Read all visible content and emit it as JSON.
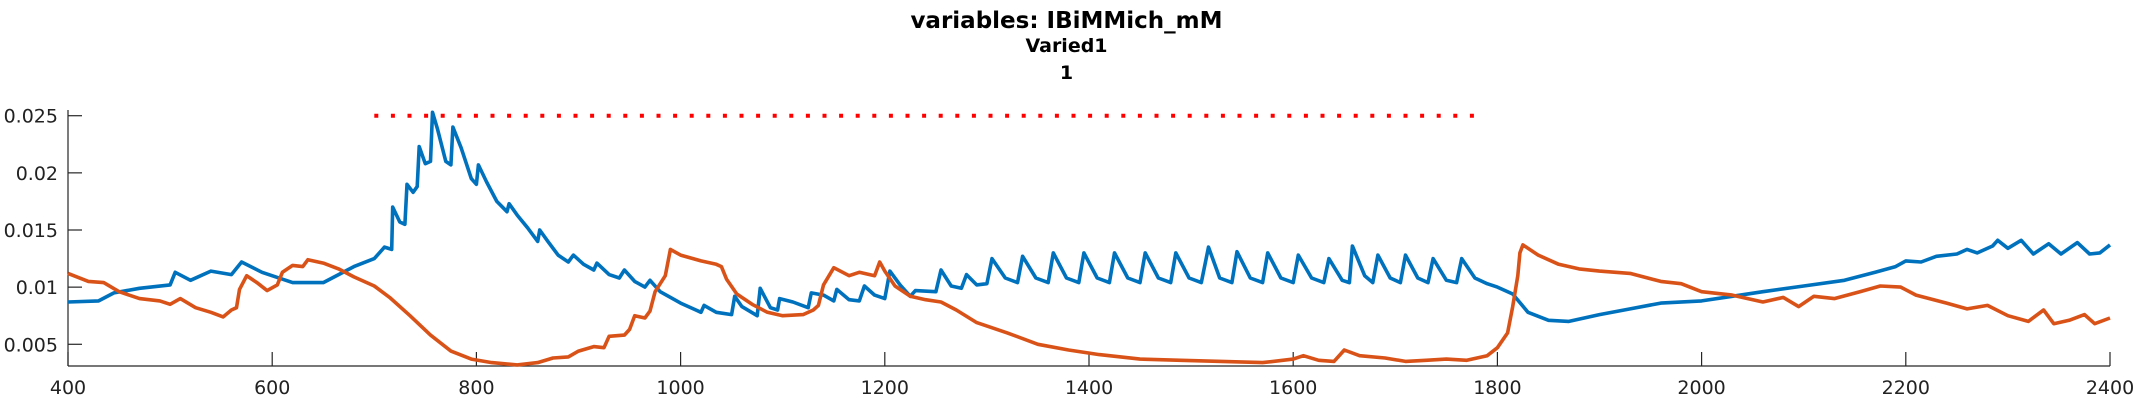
{
  "chart_data": {
    "type": "line",
    "title": "variables: IBiMMich_mM",
    "subtitle_lines": [
      "Varied1",
      "1"
    ],
    "xlabel": "",
    "ylabel": "",
    "xlim": [
      400,
      2400
    ],
    "ylim": [
      0.0031,
      0.0255
    ],
    "x_ticks": [
      400,
      600,
      800,
      1000,
      1200,
      1400,
      1600,
      1800,
      2000,
      2200,
      2400
    ],
    "y_ticks": [
      0.005,
      0.01,
      0.015,
      0.02,
      0.025
    ],
    "y_tick_labels": [
      "0.005",
      "0.01",
      "0.015",
      "0.02",
      "0.025"
    ],
    "grid": false,
    "series": [
      {
        "color": "#0072BD",
        "style": "solid",
        "points": [
          [
            400,
            0.0087
          ],
          [
            430,
            0.0088
          ],
          [
            445,
            0.0095
          ],
          [
            470,
            0.0099
          ],
          [
            500,
            0.0102
          ],
          [
            505,
            0.0113
          ],
          [
            520,
            0.0106
          ],
          [
            540,
            0.0114
          ],
          [
            560,
            0.0111
          ],
          [
            570,
            0.0122
          ],
          [
            590,
            0.0113
          ],
          [
            620,
            0.0104
          ],
          [
            650,
            0.0104
          ],
          [
            680,
            0.0118
          ],
          [
            700,
            0.0125
          ],
          [
            710,
            0.0135
          ],
          [
            717,
            0.0133
          ],
          [
            718,
            0.017
          ],
          [
            725,
            0.0157
          ],
          [
            730,
            0.0155
          ],
          [
            732,
            0.019
          ],
          [
            738,
            0.0183
          ],
          [
            742,
            0.0188
          ],
          [
            744,
            0.0223
          ],
          [
            750,
            0.0208
          ],
          [
            755,
            0.021
          ],
          [
            757,
            0.0253
          ],
          [
            762,
            0.0238
          ],
          [
            770,
            0.021
          ],
          [
            775,
            0.0207
          ],
          [
            777,
            0.024
          ],
          [
            785,
            0.0222
          ],
          [
            795,
            0.0195
          ],
          [
            800,
            0.019
          ],
          [
            802,
            0.0207
          ],
          [
            810,
            0.0192
          ],
          [
            820,
            0.0175
          ],
          [
            830,
            0.0166
          ],
          [
            832,
            0.0173
          ],
          [
            840,
            0.0163
          ],
          [
            850,
            0.0152
          ],
          [
            860,
            0.014
          ],
          [
            862,
            0.015
          ],
          [
            870,
            0.014
          ],
          [
            880,
            0.0128
          ],
          [
            890,
            0.0122
          ],
          [
            895,
            0.0128
          ],
          [
            905,
            0.012
          ],
          [
            915,
            0.0115
          ],
          [
            918,
            0.0121
          ],
          [
            930,
            0.0111
          ],
          [
            940,
            0.0108
          ],
          [
            945,
            0.0115
          ],
          [
            955,
            0.0105
          ],
          [
            965,
            0.01
          ],
          [
            970,
            0.0106
          ],
          [
            980,
            0.0096
          ],
          [
            1000,
            0.0086
          ],
          [
            1015,
            0.008
          ],
          [
            1020,
            0.0078
          ],
          [
            1023,
            0.0084
          ],
          [
            1035,
            0.0078
          ],
          [
            1050,
            0.0076
          ],
          [
            1053,
            0.0092
          ],
          [
            1060,
            0.0083
          ],
          [
            1075,
            0.0075
          ],
          [
            1078,
            0.0099
          ],
          [
            1088,
            0.0082
          ],
          [
            1095,
            0.008
          ],
          [
            1097,
            0.009
          ],
          [
            1110,
            0.0087
          ],
          [
            1125,
            0.0082
          ],
          [
            1128,
            0.0095
          ],
          [
            1140,
            0.0093
          ],
          [
            1150,
            0.0088
          ],
          [
            1153,
            0.0098
          ],
          [
            1165,
            0.0089
          ],
          [
            1175,
            0.0088
          ],
          [
            1180,
            0.0101
          ],
          [
            1190,
            0.0093
          ],
          [
            1200,
            0.009
          ],
          [
            1205,
            0.0114
          ],
          [
            1215,
            0.0102
          ],
          [
            1225,
            0.0092
          ],
          [
            1230,
            0.0097
          ],
          [
            1250,
            0.0096
          ],
          [
            1255,
            0.0115
          ],
          [
            1265,
            0.0101
          ],
          [
            1275,
            0.0099
          ],
          [
            1280,
            0.0111
          ],
          [
            1290,
            0.0102
          ],
          [
            1300,
            0.0103
          ],
          [
            1305,
            0.0125
          ],
          [
            1318,
            0.0108
          ],
          [
            1330,
            0.0104
          ],
          [
            1335,
            0.0127
          ],
          [
            1348,
            0.0108
          ],
          [
            1360,
            0.0104
          ],
          [
            1365,
            0.013
          ],
          [
            1378,
            0.0108
          ],
          [
            1390,
            0.0104
          ],
          [
            1395,
            0.013
          ],
          [
            1408,
            0.0108
          ],
          [
            1420,
            0.0104
          ],
          [
            1425,
            0.013
          ],
          [
            1438,
            0.0108
          ],
          [
            1450,
            0.0104
          ],
          [
            1455,
            0.013
          ],
          [
            1468,
            0.0108
          ],
          [
            1480,
            0.0104
          ],
          [
            1485,
            0.013
          ],
          [
            1498,
            0.0108
          ],
          [
            1510,
            0.0104
          ],
          [
            1517,
            0.0135
          ],
          [
            1528,
            0.0108
          ],
          [
            1540,
            0.0104
          ],
          [
            1545,
            0.0131
          ],
          [
            1558,
            0.0108
          ],
          [
            1570,
            0.0104
          ],
          [
            1575,
            0.013
          ],
          [
            1588,
            0.0108
          ],
          [
            1600,
            0.0104
          ],
          [
            1605,
            0.0128
          ],
          [
            1618,
            0.0108
          ],
          [
            1630,
            0.0104
          ],
          [
            1635,
            0.0125
          ],
          [
            1648,
            0.0106
          ],
          [
            1655,
            0.0104
          ],
          [
            1658,
            0.0136
          ],
          [
            1670,
            0.011
          ],
          [
            1678,
            0.0104
          ],
          [
            1683,
            0.0128
          ],
          [
            1695,
            0.0108
          ],
          [
            1705,
            0.0104
          ],
          [
            1710,
            0.0128
          ],
          [
            1722,
            0.0108
          ],
          [
            1732,
            0.0104
          ],
          [
            1737,
            0.0125
          ],
          [
            1750,
            0.0106
          ],
          [
            1760,
            0.0104
          ],
          [
            1765,
            0.0125
          ],
          [
            1778,
            0.0108
          ],
          [
            1790,
            0.0103
          ],
          [
            1800,
            0.01
          ],
          [
            1815,
            0.0094
          ],
          [
            1830,
            0.0078
          ],
          [
            1850,
            0.0071
          ],
          [
            1870,
            0.007
          ],
          [
            1900,
            0.0076
          ],
          [
            1930,
            0.0081
          ],
          [
            1960,
            0.0086
          ],
          [
            2000,
            0.0088
          ],
          [
            2030,
            0.0092
          ],
          [
            2060,
            0.0096
          ],
          [
            2100,
            0.0101
          ],
          [
            2140,
            0.0106
          ],
          [
            2170,
            0.0113
          ],
          [
            2190,
            0.0118
          ],
          [
            2200,
            0.0123
          ],
          [
            2215,
            0.0122
          ],
          [
            2230,
            0.0127
          ],
          [
            2250,
            0.0129
          ],
          [
            2260,
            0.0133
          ],
          [
            2270,
            0.013
          ],
          [
            2285,
            0.0136
          ],
          [
            2290,
            0.0141
          ],
          [
            2300,
            0.0134
          ],
          [
            2313,
            0.0141
          ],
          [
            2325,
            0.0129
          ],
          [
            2340,
            0.0138
          ],
          [
            2352,
            0.0129
          ],
          [
            2368,
            0.0139
          ],
          [
            2380,
            0.0129
          ],
          [
            2390,
            0.013
          ],
          [
            2400,
            0.0137
          ]
        ]
      },
      {
        "color": "#D95319",
        "style": "solid",
        "points": [
          [
            400,
            0.0112
          ],
          [
            420,
            0.0105
          ],
          [
            435,
            0.0104
          ],
          [
            450,
            0.0096
          ],
          [
            470,
            0.009
          ],
          [
            490,
            0.0088
          ],
          [
            500,
            0.0085
          ],
          [
            510,
            0.009
          ],
          [
            525,
            0.0082
          ],
          [
            540,
            0.0078
          ],
          [
            552,
            0.0074
          ],
          [
            560,
            0.008
          ],
          [
            565,
            0.0082
          ],
          [
            568,
            0.0098
          ],
          [
            575,
            0.011
          ],
          [
            585,
            0.0104
          ],
          [
            595,
            0.0097
          ],
          [
            605,
            0.0102
          ],
          [
            610,
            0.0113
          ],
          [
            620,
            0.0119
          ],
          [
            630,
            0.0118
          ],
          [
            635,
            0.0124
          ],
          [
            650,
            0.0121
          ],
          [
            665,
            0.0116
          ],
          [
            680,
            0.0109
          ],
          [
            700,
            0.0101
          ],
          [
            715,
            0.0091
          ],
          [
            735,
            0.0075
          ],
          [
            755,
            0.0058
          ],
          [
            775,
            0.0044
          ],
          [
            795,
            0.0037
          ],
          [
            815,
            0.0034
          ],
          [
            840,
            0.0032
          ],
          [
            860,
            0.0034
          ],
          [
            875,
            0.0038
          ],
          [
            890,
            0.0039
          ],
          [
            900,
            0.0044
          ],
          [
            915,
            0.0048
          ],
          [
            925,
            0.0047
          ],
          [
            930,
            0.0057
          ],
          [
            945,
            0.0058
          ],
          [
            950,
            0.0063
          ],
          [
            955,
            0.0075
          ],
          [
            965,
            0.0073
          ],
          [
            970,
            0.0079
          ],
          [
            975,
            0.0096
          ],
          [
            985,
            0.011
          ],
          [
            990,
            0.0133
          ],
          [
            1000,
            0.0128
          ],
          [
            1020,
            0.0123
          ],
          [
            1035,
            0.012
          ],
          [
            1040,
            0.0118
          ],
          [
            1045,
            0.0107
          ],
          [
            1055,
            0.0094
          ],
          [
            1070,
            0.0085
          ],
          [
            1085,
            0.0078
          ],
          [
            1100,
            0.0075
          ],
          [
            1120,
            0.0076
          ],
          [
            1130,
            0.008
          ],
          [
            1135,
            0.0084
          ],
          [
            1140,
            0.0102
          ],
          [
            1150,
            0.0117
          ],
          [
            1165,
            0.011
          ],
          [
            1175,
            0.0113
          ],
          [
            1190,
            0.011
          ],
          [
            1195,
            0.0122
          ],
          [
            1200,
            0.0114
          ],
          [
            1210,
            0.0101
          ],
          [
            1225,
            0.0092
          ],
          [
            1240,
            0.0089
          ],
          [
            1255,
            0.0087
          ],
          [
            1270,
            0.008
          ],
          [
            1290,
            0.0069
          ],
          [
            1320,
            0.006
          ],
          [
            1350,
            0.005
          ],
          [
            1380,
            0.0045
          ],
          [
            1410,
            0.0041
          ],
          [
            1450,
            0.0037
          ],
          [
            1490,
            0.0036
          ],
          [
            1530,
            0.0035
          ],
          [
            1570,
            0.0034
          ],
          [
            1600,
            0.0037
          ],
          [
            1610,
            0.004
          ],
          [
            1625,
            0.0036
          ],
          [
            1640,
            0.0035
          ],
          [
            1650,
            0.0045
          ],
          [
            1665,
            0.004
          ],
          [
            1690,
            0.0038
          ],
          [
            1710,
            0.0035
          ],
          [
            1730,
            0.0036
          ],
          [
            1750,
            0.0037
          ],
          [
            1770,
            0.0036
          ],
          [
            1790,
            0.004
          ],
          [
            1800,
            0.0047
          ],
          [
            1810,
            0.006
          ],
          [
            1815,
            0.0083
          ],
          [
            1820,
            0.011
          ],
          [
            1822,
            0.013
          ],
          [
            1825,
            0.0137
          ],
          [
            1840,
            0.0128
          ],
          [
            1860,
            0.012
          ],
          [
            1880,
            0.0116
          ],
          [
            1900,
            0.0114
          ],
          [
            1930,
            0.0112
          ],
          [
            1960,
            0.0105
          ],
          [
            1980,
            0.0103
          ],
          [
            2000,
            0.0096
          ],
          [
            2030,
            0.0093
          ],
          [
            2060,
            0.0087
          ],
          [
            2080,
            0.0091
          ],
          [
            2095,
            0.0083
          ],
          [
            2110,
            0.0092
          ],
          [
            2130,
            0.009
          ],
          [
            2155,
            0.0096
          ],
          [
            2175,
            0.0101
          ],
          [
            2195,
            0.01
          ],
          [
            2210,
            0.0093
          ],
          [
            2240,
            0.0086
          ],
          [
            2260,
            0.0081
          ],
          [
            2280,
            0.0084
          ],
          [
            2300,
            0.0075
          ],
          [
            2320,
            0.007
          ],
          [
            2335,
            0.008
          ],
          [
            2345,
            0.0068
          ],
          [
            2360,
            0.0071
          ],
          [
            2375,
            0.0076
          ],
          [
            2385,
            0.0068
          ],
          [
            2400,
            0.0073
          ]
        ]
      },
      {
        "color": "#FF0000",
        "style": "dotted",
        "points": [
          [
            700,
            0.025
          ],
          [
            1780,
            0.025
          ]
        ]
      }
    ]
  }
}
